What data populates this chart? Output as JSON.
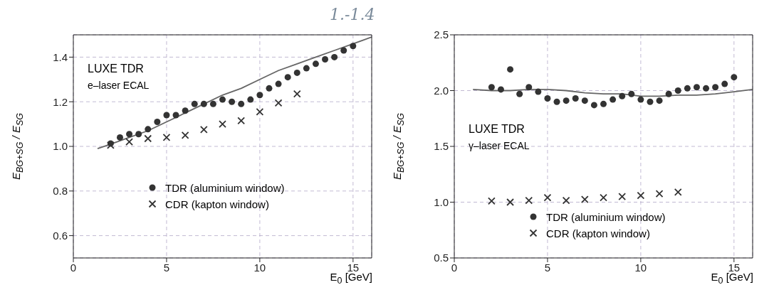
{
  "chart_data": [
    {
      "type": "scatter",
      "xlabel": "E$_{0}$ [GeV]",
      "ylabel": "E$_{BG+SG}$ / E$_{SG}$",
      "annotations": [
        "LUXE TDR",
        "e–laser ECAL",
        "1.-1.4"
      ],
      "xlim": [
        0,
        16
      ],
      "xticks": [
        0,
        5,
        10,
        15
      ],
      "ylim": [
        0.5,
        1.5
      ],
      "yticks": [
        {
          "value": 0.6,
          "label": "0.6"
        },
        {
          "value": 0.8,
          "label": "0.8"
        },
        {
          "value": 1,
          "label": "1.0"
        },
        {
          "value": 1.2,
          "label": "1.2"
        },
        {
          "value": 1.4,
          "label": "1.4"
        }
      ],
      "grid": true,
      "legend": "bottom",
      "series": [
        {
          "name": "TDR (aluminium window)",
          "color": "#333333",
          "marker": "circle",
          "x": [
            2,
            2.5,
            3,
            3.5,
            4,
            4.5,
            5,
            5.5,
            6,
            6.5,
            7,
            7.5,
            8,
            8.5,
            9,
            9.5,
            10,
            10.5,
            11,
            11.5,
            12,
            12.5,
            13,
            13.5,
            14,
            14.5,
            15
          ],
          "values": [
            1.013,
            1.04,
            1.055,
            1.055,
            1.077,
            1.11,
            1.14,
            1.14,
            1.16,
            1.19,
            1.19,
            1.19,
            1.21,
            1.2,
            1.19,
            1.21,
            1.23,
            1.26,
            1.28,
            1.31,
            1.33,
            1.35,
            1.37,
            1.39,
            1.4,
            1.43,
            1.45
          ]
        },
        {
          "name": "CDR (kapton window)",
          "color": "#333333",
          "marker": "cross",
          "x": [
            2,
            3,
            4,
            5,
            6,
            7,
            8,
            9,
            10,
            11,
            12
          ],
          "values": [
            1.005,
            1.02,
            1.035,
            1.04,
            1.05,
            1.075,
            1.1,
            1.115,
            1.155,
            1.195,
            1.235
          ]
        },
        {
          "type": "line",
          "color": "#666666",
          "marker": "none",
          "x": [
            1.3,
            2,
            3,
            4,
            5,
            6,
            7,
            8,
            9,
            10,
            11,
            12,
            13,
            14,
            15,
            16
          ],
          "values": [
            0.99,
            1.01,
            1.04,
            1.07,
            1.11,
            1.15,
            1.19,
            1.23,
            1.26,
            1.3,
            1.34,
            1.37,
            1.4,
            1.43,
            1.46,
            1.49
          ]
        }
      ]
    },
    {
      "type": "scatter",
      "xlabel": "E$_{0}$ [GeV]",
      "ylabel": "E$_{BG+SG}$ / E$_{SG}$",
      "annotations": [
        "LUXE TDR",
        "γ–laser ECAL"
      ],
      "xlim": [
        0,
        16
      ],
      "xticks": [
        0,
        5,
        10,
        15
      ],
      "ylim": [
        0.5,
        2.5
      ],
      "yticks": [
        {
          "value": 0.5,
          "label": "0.5"
        },
        {
          "value": 1,
          "label": "1.0"
        },
        {
          "value": 1.5,
          "label": "1.5"
        },
        {
          "value": 2,
          "label": "2.0"
        },
        {
          "value": 2.5,
          "label": "2.5"
        }
      ],
      "grid": true,
      "legend": "bottom",
      "series": [
        {
          "name": "TDR (aluminium window)",
          "color": "#333333",
          "marker": "circle",
          "x": [
            2,
            2.5,
            3,
            3.5,
            4,
            4.5,
            5,
            5.5,
            6,
            6.5,
            7,
            7.5,
            8,
            8.5,
            9,
            9.5,
            10,
            10.5,
            11,
            11.5,
            12,
            12.5,
            13,
            13.5,
            14,
            14.5,
            15
          ],
          "values": [
            2.03,
            2.01,
            2.19,
            1.97,
            2.03,
            1.99,
            1.93,
            1.9,
            1.91,
            1.93,
            1.91,
            1.87,
            1.88,
            1.92,
            1.95,
            1.97,
            1.92,
            1.9,
            1.91,
            1.97,
            2.0,
            2.02,
            2.03,
            2.02,
            2.03,
            2.06,
            2.12
          ]
        },
        {
          "name": "CDR (kapton window)",
          "color": "#333333",
          "marker": "cross",
          "x": [
            2,
            3,
            4,
            5,
            6,
            7,
            8,
            9,
            10,
            11,
            12
          ],
          "values": [
            1.01,
            1.0,
            1.015,
            1.04,
            1.015,
            1.025,
            1.04,
            1.05,
            1.06,
            1.075,
            1.09
          ]
        },
        {
          "type": "line",
          "color": "#666666",
          "marker": "none",
          "x": [
            1,
            2,
            3,
            4,
            5,
            6,
            7,
            8,
            9,
            10,
            11,
            12,
            13,
            14,
            15,
            16
          ],
          "values": [
            2.01,
            2.0,
            2.0,
            2.01,
            2.01,
            2.0,
            1.98,
            1.97,
            1.97,
            1.95,
            1.95,
            1.96,
            1.96,
            1.97,
            1.99,
            2.01
          ]
        }
      ]
    }
  ]
}
